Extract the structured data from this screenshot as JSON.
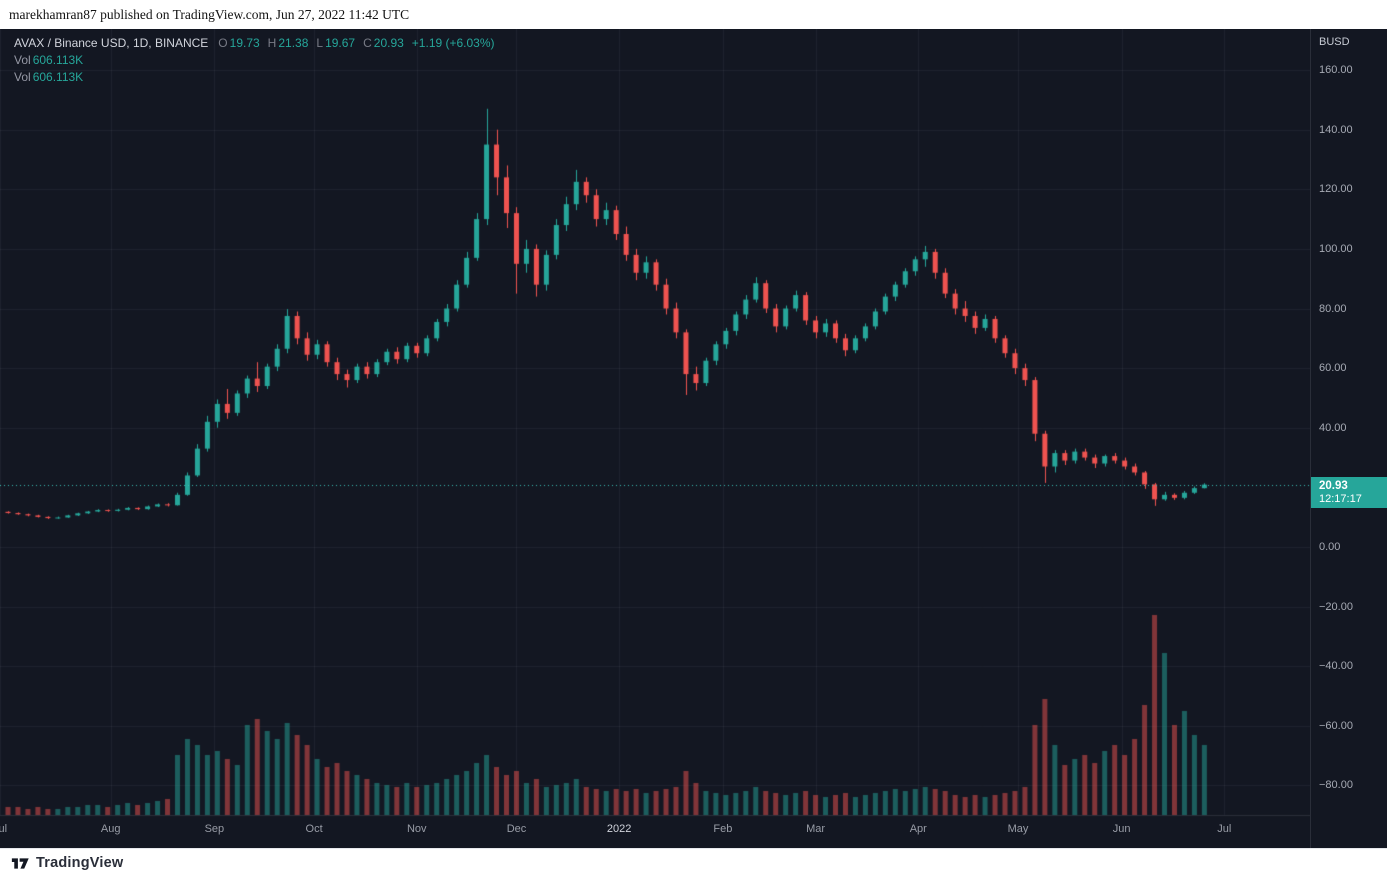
{
  "header": {
    "text": "marekhamran87 published on TradingView.com, Jun 27, 2022 11:42 UTC"
  },
  "legend": {
    "symbol": "AVAX / Binance USD, 1D, BINANCE",
    "o_label": "O",
    "o_value": "19.73",
    "h_label": "H",
    "h_value": "21.38",
    "l_label": "L",
    "l_value": "19.67",
    "c_label": "C",
    "c_value": "20.93",
    "change": "+1.19 (+6.03%)",
    "vol_rows": [
      {
        "label": "Vol",
        "value": "606.113K"
      },
      {
        "label": "Vol",
        "value": "606.113K"
      }
    ]
  },
  "price_scale": {
    "currency": "BUSD",
    "ticks": [
      {
        "value": 160,
        "label": "160.00"
      },
      {
        "value": 140,
        "label": "140.00"
      },
      {
        "value": 120,
        "label": "120.00"
      },
      {
        "value": 100,
        "label": "100.00"
      },
      {
        "value": 80,
        "label": "80.00"
      },
      {
        "value": 60,
        "label": "60.00"
      },
      {
        "value": 40,
        "label": "40.00"
      },
      {
        "value": 0,
        "label": "0.00"
      },
      {
        "value": -20,
        "label": "−20.00"
      },
      {
        "value": -40,
        "label": "−40.00"
      },
      {
        "value": -60,
        "label": "−60.00"
      },
      {
        "value": -80,
        "label": "−80.00"
      }
    ],
    "badge": {
      "price": "20.93",
      "countdown": "12:17:17",
      "color": "#26a69a"
    }
  },
  "time_scale": {
    "ticks": [
      {
        "label": "Jul",
        "i": -0.8,
        "year": false
      },
      {
        "label": "Aug",
        "i": 10.3,
        "year": false
      },
      {
        "label": "Sep",
        "i": 20.7,
        "year": false
      },
      {
        "label": "Oct",
        "i": 30.7,
        "year": false
      },
      {
        "label": "Nov",
        "i": 41.0,
        "year": false
      },
      {
        "label": "Dec",
        "i": 51.0,
        "year": false
      },
      {
        "label": "2022",
        "i": 61.3,
        "year": true
      },
      {
        "label": "Feb",
        "i": 71.7,
        "year": false
      },
      {
        "label": "Mar",
        "i": 81.0,
        "year": false
      },
      {
        "label": "Apr",
        "i": 91.3,
        "year": false
      },
      {
        "label": "May",
        "i": 101.3,
        "year": false
      },
      {
        "label": "Jun",
        "i": 111.7,
        "year": false
      },
      {
        "label": "Jul",
        "i": 122.0,
        "year": false
      }
    ]
  },
  "footer": {
    "brand": "TradingView"
  },
  "chart_data": {
    "type": "candlestick",
    "symbol": "AVAX / Binance USD",
    "exchange": "BINANCE",
    "interval": "1D",
    "x_range": "Jul 2021 - Jul 2022",
    "ylim": [
      -89,
      174
    ],
    "grid_step": 20,
    "current_price": 20.93,
    "countdown": "12:17:17",
    "last_candle": {
      "open": 19.73,
      "high": 21.38,
      "low": 19.67,
      "close": 20.93,
      "change": 1.19,
      "change_pct": 6.03
    },
    "last_volume_label": "606.113K",
    "colors": {
      "up": "#26a69a",
      "down": "#ef5350",
      "price_line": "#3bbfb4",
      "vol_up": "rgba(38,166,154,0.5)",
      "vol_down": "rgba(239,83,80,0.5)"
    },
    "candles": [
      [
        11.8,
        12.0,
        11.2,
        11.4
      ],
      [
        11.4,
        11.6,
        10.8,
        11.0
      ],
      [
        11.0,
        11.2,
        10.3,
        10.6
      ],
      [
        10.6,
        10.8,
        9.9,
        10.1
      ],
      [
        10.1,
        10.3,
        9.4,
        9.7
      ],
      [
        9.7,
        10.2,
        9.5,
        9.9
      ],
      [
        9.9,
        10.8,
        9.8,
        10.6
      ],
      [
        10.6,
        11.5,
        10.4,
        11.3
      ],
      [
        11.3,
        12.1,
        11.1,
        11.9
      ],
      [
        11.9,
        12.7,
        11.7,
        12.4
      ],
      [
        12.4,
        12.6,
        11.8,
        12.1
      ],
      [
        12.1,
        12.8,
        11.9,
        12.5
      ],
      [
        12.5,
        13.4,
        12.3,
        13.1
      ],
      [
        13.1,
        13.3,
        12.4,
        12.7
      ],
      [
        12.7,
        13.9,
        12.5,
        13.6
      ],
      [
        13.6,
        14.6,
        13.4,
        14.3
      ],
      [
        14.3,
        14.7,
        13.6,
        14.0
      ],
      [
        14.0,
        18.2,
        13.9,
        17.5
      ],
      [
        17.5,
        25.0,
        17.2,
        24.0
      ],
      [
        24.0,
        34.5,
        23.5,
        33.0
      ],
      [
        33.0,
        44.0,
        32.0,
        42.0
      ],
      [
        42.0,
        49.5,
        40.0,
        48.0
      ],
      [
        48.0,
        53.0,
        43.0,
        45.0
      ],
      [
        45.0,
        52.5,
        44.0,
        51.5
      ],
      [
        51.5,
        57.5,
        50.0,
        56.5
      ],
      [
        56.5,
        62.0,
        52.0,
        54.0
      ],
      [
        54.0,
        61.5,
        53.0,
        60.5
      ],
      [
        60.5,
        68.0,
        59.0,
        66.5
      ],
      [
        66.5,
        79.8,
        65.0,
        77.5
      ],
      [
        77.5,
        79.0,
        68.0,
        70.0
      ],
      [
        70.0,
        72.0,
        62.5,
        64.5
      ],
      [
        64.5,
        69.5,
        63.0,
        68.0
      ],
      [
        68.0,
        69.0,
        60.5,
        62.0
      ],
      [
        62.0,
        63.5,
        56.0,
        58.0
      ],
      [
        58.0,
        59.5,
        53.5,
        56.0
      ],
      [
        56.0,
        61.5,
        55.0,
        60.5
      ],
      [
        60.5,
        62.0,
        56.5,
        58.0
      ],
      [
        58.0,
        63.0,
        57.0,
        62.0
      ],
      [
        62.0,
        66.5,
        61.0,
        65.5
      ],
      [
        65.5,
        67.0,
        61.5,
        63.0
      ],
      [
        63.0,
        68.5,
        62.0,
        67.5
      ],
      [
        67.5,
        68.5,
        63.5,
        65.0
      ],
      [
        65.0,
        71.0,
        64.0,
        70.0
      ],
      [
        70.0,
        76.5,
        69.0,
        75.5
      ],
      [
        75.5,
        81.5,
        74.0,
        80.0
      ],
      [
        80.0,
        89.5,
        79.0,
        88.0
      ],
      [
        88.0,
        99.0,
        87.0,
        97.0
      ],
      [
        97.0,
        112.0,
        96.0,
        110.0
      ],
      [
        110.0,
        147.0,
        108.0,
        135.0
      ],
      [
        135.0,
        140.0,
        118.0,
        124.0
      ],
      [
        124.0,
        128.0,
        107.0,
        112.0
      ],
      [
        112.0,
        114.0,
        85.0,
        95.0
      ],
      [
        95.0,
        103.0,
        92.0,
        100.0
      ],
      [
        100.0,
        101.5,
        84.0,
        88.0
      ],
      [
        88.0,
        99.5,
        86.0,
        98.0
      ],
      [
        98.0,
        110.0,
        96.5,
        108.0
      ],
      [
        108.0,
        117.5,
        106.0,
        115.0
      ],
      [
        115.0,
        126.5,
        113.0,
        122.5
      ],
      [
        122.5,
        124.0,
        115.5,
        118.0
      ],
      [
        118.0,
        120.0,
        107.5,
        110.0
      ],
      [
        110.0,
        115.5,
        108.0,
        113.0
      ],
      [
        113.0,
        114.5,
        103.0,
        105.0
      ],
      [
        105.0,
        107.5,
        96.0,
        98.0
      ],
      [
        98.0,
        100.0,
        89.5,
        92.0
      ],
      [
        92.0,
        97.5,
        90.0,
        95.5
      ],
      [
        95.5,
        96.5,
        86.0,
        88.0
      ],
      [
        88.0,
        90.0,
        78.0,
        80.0
      ],
      [
        80.0,
        82.0,
        70.0,
        72.0
      ],
      [
        72.0,
        73.0,
        51.0,
        58.0
      ],
      [
        58.0,
        60.5,
        52.5,
        55.0
      ],
      [
        55.0,
        63.5,
        54.0,
        62.5
      ],
      [
        62.5,
        69.0,
        61.0,
        68.0
      ],
      [
        68.0,
        73.5,
        66.5,
        72.5
      ],
      [
        72.5,
        79.0,
        71.0,
        78.0
      ],
      [
        78.0,
        84.5,
        76.5,
        83.0
      ],
      [
        83.0,
        90.5,
        82.0,
        88.5
      ],
      [
        88.5,
        89.5,
        78.5,
        80.0
      ],
      [
        80.0,
        81.5,
        72.0,
        74.0
      ],
      [
        74.0,
        81.0,
        73.0,
        80.0
      ],
      [
        80.0,
        86.0,
        79.0,
        84.5
      ],
      [
        84.5,
        85.5,
        74.5,
        76.0
      ],
      [
        76.0,
        77.5,
        70.0,
        72.0
      ],
      [
        72.0,
        76.5,
        70.5,
        75.0
      ],
      [
        75.0,
        76.0,
        68.5,
        70.0
      ],
      [
        70.0,
        71.5,
        64.0,
        66.0
      ],
      [
        66.0,
        71.0,
        65.0,
        70.0
      ],
      [
        70.0,
        75.0,
        69.0,
        74.0
      ],
      [
        74.0,
        80.0,
        73.0,
        79.0
      ],
      [
        79.0,
        85.0,
        78.0,
        84.0
      ],
      [
        84.0,
        89.0,
        82.5,
        88.0
      ],
      [
        88.0,
        93.5,
        87.0,
        92.5
      ],
      [
        92.5,
        97.5,
        91.0,
        96.5
      ],
      [
        96.5,
        101.0,
        94.0,
        99.0
      ],
      [
        99.0,
        100.0,
        90.0,
        92.0
      ],
      [
        92.0,
        93.5,
        83.5,
        85.0
      ],
      [
        85.0,
        86.5,
        78.0,
        80.0
      ],
      [
        80.0,
        82.5,
        75.5,
        77.5
      ],
      [
        77.5,
        79.0,
        71.5,
        73.5
      ],
      [
        73.5,
        78.0,
        72.5,
        76.5
      ],
      [
        76.5,
        77.5,
        68.5,
        70.0
      ],
      [
        70.0,
        71.0,
        63.5,
        65.0
      ],
      [
        65.0,
        66.5,
        58.0,
        60.0
      ],
      [
        60.0,
        61.5,
        54.0,
        56.0
      ],
      [
        56.0,
        57.0,
        35.5,
        38.0
      ],
      [
        38.0,
        39.0,
        21.5,
        27.0
      ],
      [
        27.0,
        32.5,
        25.0,
        31.5
      ],
      [
        31.5,
        32.5,
        27.5,
        29.0
      ],
      [
        29.0,
        33.0,
        28.0,
        32.0
      ],
      [
        32.0,
        33.0,
        29.0,
        30.0
      ],
      [
        30.0,
        31.0,
        26.5,
        28.0
      ],
      [
        28.0,
        31.0,
        27.0,
        30.5
      ],
      [
        30.5,
        31.5,
        28.0,
        29.0
      ],
      [
        29.0,
        30.0,
        26.0,
        27.0
      ],
      [
        27.0,
        28.0,
        24.0,
        25.0
      ],
      [
        25.0,
        25.5,
        19.5,
        21.0
      ],
      [
        21.0,
        21.5,
        13.8,
        16.0
      ],
      [
        16.0,
        18.5,
        15.5,
        17.5
      ],
      [
        17.5,
        18.0,
        15.8,
        16.5
      ],
      [
        16.5,
        18.8,
        16.0,
        18.2
      ],
      [
        18.2,
        20.3,
        17.8,
        19.74
      ],
      [
        19.73,
        21.38,
        19.67,
        20.93
      ]
    ],
    "volumes_relative": [
      4,
      4,
      3,
      4,
      3,
      3,
      4,
      4,
      5,
      5,
      4,
      5,
      6,
      5,
      6,
      7,
      8,
      30,
      38,
      35,
      30,
      32,
      28,
      25,
      45,
      48,
      42,
      38,
      46,
      40,
      35,
      28,
      24,
      26,
      22,
      20,
      18,
      16,
      15,
      14,
      16,
      14,
      15,
      16,
      18,
      20,
      22,
      26,
      30,
      24,
      20,
      22,
      16,
      18,
      14,
      15,
      16,
      18,
      14,
      13,
      12,
      13,
      12,
      13,
      11,
      12,
      13,
      14,
      22,
      16,
      12,
      11,
      10,
      11,
      12,
      14,
      12,
      11,
      10,
      11,
      12,
      10,
      9,
      10,
      11,
      9,
      10,
      11,
      12,
      13,
      12,
      13,
      14,
      13,
      12,
      10,
      9,
      10,
      9,
      10,
      11,
      12,
      14,
      45,
      58,
      35,
      25,
      28,
      30,
      26,
      32,
      35,
      30,
      38,
      55,
      100,
      81,
      45,
      52,
      40,
      35
    ]
  }
}
